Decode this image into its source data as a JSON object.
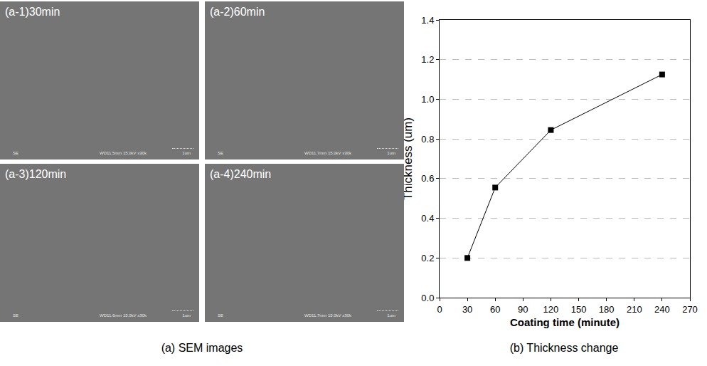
{
  "sem_images": {
    "caption": "(a) SEM images",
    "panels": [
      {
        "label": "(a-1)30min",
        "detector": "SE",
        "info": "WD11.5mm 15.0kV x30k",
        "scale": "1um"
      },
      {
        "label": "(a-2)60min",
        "detector": "SE",
        "info": "WD11.7mm 15.0kV x30k",
        "scale": "1um"
      },
      {
        "label": "(a-3)120min",
        "detector": "SE",
        "info": "WD11.6mm 15.0kV x30k",
        "scale": "1um"
      },
      {
        "label": "(a-4)240min",
        "detector": "SE",
        "info": "WD11.7mm 15.0kV x30k",
        "scale": "1um"
      }
    ]
  },
  "chart_data": {
    "type": "line",
    "caption": "(b) Thickness change",
    "x_label": "Coating time (minute)",
    "y_label": "Thickness (um)",
    "x": [
      30,
      60,
      120,
      240
    ],
    "values": [
      0.2,
      0.555,
      0.845,
      1.125
    ],
    "color": "#000000",
    "marker": "square",
    "xlim": [
      0,
      270
    ],
    "xticks": [
      0,
      30,
      60,
      90,
      120,
      150,
      180,
      210,
      240,
      270
    ],
    "ylim": [
      0,
      1.4
    ],
    "yticks": [
      {
        "value": 0,
        "label": "0.0"
      },
      0.2,
      0.4,
      0.6,
      0.8,
      {
        "value": 1,
        "label": "1.0"
      },
      1.2,
      1.4
    ],
    "grid": true
  }
}
